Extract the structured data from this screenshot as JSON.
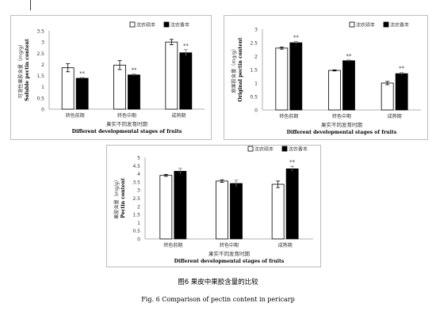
{
  "caption_zh": "图6 果皮中果胶含量的比较",
  "caption_en": "Fig. 6 Comparison of pectin content in pericarp",
  "colors": {
    "series_1_fill": "#ffffff",
    "series_2_fill": "#000000"
  },
  "chart_data": [
    {
      "type": "bar",
      "categories": [
        "转色前期",
        "转色中期",
        "成熟期"
      ],
      "ylabel": "可溶性果胶含量（mg/g）",
      "ylabel_en": "Soluble pectin content",
      "xlabel": "果实不同发育时期",
      "xlabel_en": "Different developmental stages of fruits",
      "ylim": [
        0,
        3.5
      ],
      "yticks": [
        "0",
        "0.5",
        "1",
        "1.5",
        "2",
        "2.5",
        "3",
        "3.5"
      ],
      "grid": false,
      "legend_position": "top-right",
      "series": [
        {
          "name": "沈农硕丰",
          "values": [
            1.85,
            1.97,
            3.0
          ],
          "errors": [
            0.18,
            0.2,
            0.12
          ]
        },
        {
          "name": "沈农香丰",
          "values": [
            1.38,
            1.53,
            2.52
          ],
          "errors": [
            0.03,
            0.04,
            0.14
          ]
        }
      ],
      "annotations": [
        {
          "category": "转色前期",
          "series": "沈农香丰",
          "text": "**"
        },
        {
          "category": "转色中期",
          "series": "沈农香丰",
          "text": "**"
        },
        {
          "category": "成熟期",
          "series": "沈农香丰",
          "text": "**"
        }
      ]
    },
    {
      "type": "bar",
      "categories": [
        "转色前期",
        "转色中期",
        "成熟期"
      ],
      "ylabel": "原果胶含量（mg/g）",
      "ylabel_en": "Original pectin content",
      "xlabel": "果实不同发育时期",
      "xlabel_en": "Different developmental stages of fruits",
      "ylim": [
        0,
        3
      ],
      "yticks": [
        "0",
        "0.5",
        "1",
        "1.5",
        "2",
        "2.5",
        "3"
      ],
      "grid": false,
      "legend_position": "top-right",
      "series": [
        {
          "name": "沈农硕丰",
          "values": [
            2.3,
            1.47,
            1.0
          ],
          "errors": [
            0.04,
            0.02,
            0.06
          ]
        },
        {
          "name": "沈农香丰",
          "values": [
            2.5,
            1.83,
            1.35
          ],
          "errors": [
            0.05,
            0.03,
            0.04
          ]
        }
      ],
      "annotations": [
        {
          "category": "转色前期",
          "series": "沈农香丰",
          "text": "**"
        },
        {
          "category": "转色中期",
          "series": "沈农香丰",
          "text": "**"
        },
        {
          "category": "成熟期",
          "series": "沈农香丰",
          "text": "**"
        }
      ]
    },
    {
      "type": "bar",
      "categories": [
        "转色前期",
        "转色中期",
        "成熟期"
      ],
      "ylabel": "果胶含量（mg/g）",
      "ylabel_en": "Pectin content",
      "xlabel": "果实不同发育时期",
      "xlabel_en": "Different developmental stages of fruits",
      "ylim": [
        0,
        5
      ],
      "yticks": [
        "0",
        "0.5",
        "1",
        "1.5",
        "2",
        "2.5",
        "3",
        "3.5",
        "4",
        "4.5",
        "5"
      ],
      "grid": false,
      "legend_position": "top-right",
      "series": [
        {
          "name": "沈农硕丰",
          "values": [
            3.9,
            3.55,
            3.35
          ],
          "errors": [
            0.06,
            0.08,
            0.2
          ]
        },
        {
          "name": "沈农香丰",
          "values": [
            4.15,
            3.4,
            4.3
          ],
          "errors": [
            0.18,
            0.2,
            0.16
          ]
        }
      ],
      "annotations": [
        {
          "category": "成熟期",
          "series": "沈农香丰",
          "text": "**"
        }
      ]
    }
  ]
}
